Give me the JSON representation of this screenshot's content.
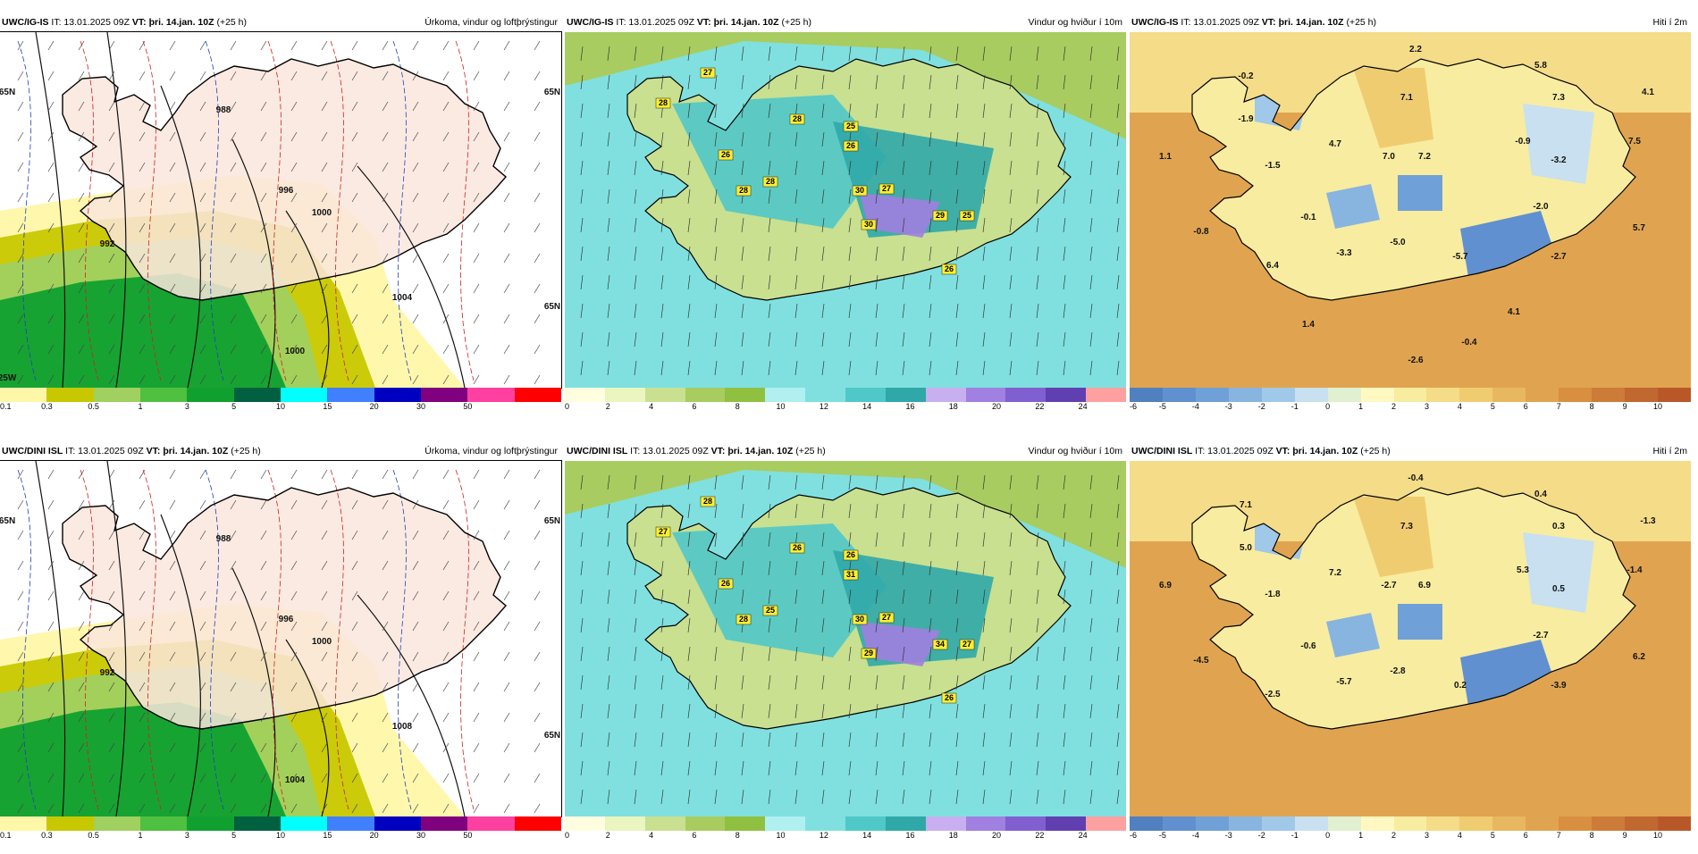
{
  "panels": [
    {
      "model": "UWC/IG-IS",
      "it": "IT: 13.01.2025 09Z",
      "vt_label": "VT:",
      "vt": "þri. 14.jan. 10Z",
      "lead": "(+25 h)",
      "title": "Úrkoma, vindur og loftþrýstingur",
      "type": "precip",
      "scale_labels": [
        "0.1",
        "0.3",
        "0.5",
        "1",
        "3",
        "5",
        "10",
        "15",
        "20",
        "30",
        "50"
      ],
      "scale_colors": [
        "#fff7a8",
        "#c8c800",
        "#a0d060",
        "#50c040",
        "#10a030",
        "#006040",
        "#00ffff",
        "#4080ff",
        "#0000c0",
        "#800080",
        "#ff40a0",
        "#ff0000"
      ],
      "isobars": [
        "988",
        "996",
        "1000",
        "1000",
        "1004",
        "992"
      ],
      "grid_labels": [
        "65N",
        "65N",
        "65N",
        "25W"
      ],
      "point_labels": []
    },
    {
      "model": "UWC/IG-IS",
      "it": "IT: 13.01.2025 09Z",
      "vt_label": "VT:",
      "vt": "þri. 14.jan. 10Z",
      "lead": "(+25 h)",
      "title": "Vindur og hviður í 10m",
      "type": "wind",
      "scale_labels": [
        "0",
        "2",
        "4",
        "6",
        "8",
        "10",
        "12",
        "14",
        "16",
        "18",
        "20",
        "22",
        "24"
      ],
      "scale_colors": [
        "#ffffe0",
        "#eaf5c0",
        "#c8e090",
        "#a8cc60",
        "#90c040",
        "#b0f0f0",
        "#80e0e0",
        "#50c8c8",
        "#30a8a8",
        "#c8b0f0",
        "#a080e0",
        "#8060d0",
        "#6040b0",
        "#ffa0a0"
      ],
      "point_labels": [
        "27",
        "28",
        "26",
        "28",
        "28",
        "28",
        "25",
        "26",
        "30",
        "27",
        "30",
        "29",
        "25",
        "26"
      ],
      "grid_labels": []
    },
    {
      "model": "UWC/IG-IS",
      "it": "IT: 13.01.2025 09Z",
      "vt_label": "VT:",
      "vt": "þri. 14.jan. 10Z",
      "lead": "(+25 h)",
      "title": "Hiti í 2m",
      "type": "temp",
      "scale_labels": [
        "-6",
        "-5",
        "-4",
        "-3",
        "-2",
        "-1",
        "0",
        "1",
        "2",
        "3",
        "4",
        "5",
        "6",
        "7",
        "8",
        "9",
        "10"
      ],
      "scale_colors": [
        "#5080c0",
        "#6090d0",
        "#70a0d8",
        "#88b4e0",
        "#a0c8e8",
        "#c8e0f0",
        "#e0f0d0",
        "#fff8c0",
        "#f8eca0",
        "#f4dc88",
        "#f0cc70",
        "#e8b860",
        "#e0a450",
        "#d89040",
        "#cc7c38",
        "#c06830",
        "#b85828"
      ],
      "point_labels": [
        "2.2",
        "5.8",
        "-0.2",
        "4.1",
        "-1.9",
        "7.1",
        "7.3",
        "1.1",
        "4.7",
        "7.0",
        "7.2",
        "-0.9",
        "7.5",
        "-1.5",
        "-3.2",
        "-0.1",
        "-2.0",
        "-0.8",
        "-3.3",
        "-5.0",
        "5.7",
        "-5.7",
        "-2.7",
        "6.4",
        "1.4",
        "4.1",
        "-0.4",
        "-2.6"
      ],
      "grid_labels": []
    },
    {
      "model": "UWC/DINI ISL",
      "it": "IT: 13.01.2025 09Z",
      "vt_label": "VT:",
      "vt": "þri. 14.jan. 10Z",
      "lead": "(+25 h)",
      "title": "Úrkoma, vindur og loftþrýstingur",
      "type": "precip",
      "scale_labels": [
        "0.1",
        "0.3",
        "0.5",
        "1",
        "3",
        "5",
        "10",
        "15",
        "20",
        "30",
        "50"
      ],
      "scale_colors": [
        "#fff7a8",
        "#c8c800",
        "#a0d060",
        "#50c040",
        "#10a030",
        "#006040",
        "#00ffff",
        "#4080ff",
        "#0000c0",
        "#800080",
        "#ff40a0",
        "#ff0000"
      ],
      "isobars": [
        "988",
        "996",
        "1000",
        "1004",
        "1008",
        "992"
      ],
      "grid_labels": [
        "65N",
        "65N",
        "65N"
      ],
      "point_labels": []
    },
    {
      "model": "UWC/DINI ISL",
      "it": "IT: 13.01.2025 09Z",
      "vt_label": "VT:",
      "vt": "þri. 14.jan. 10Z",
      "lead": "(+25 h)",
      "title": "Vindur og hviður í 10m",
      "type": "wind",
      "scale_labels": [
        "0",
        "2",
        "4",
        "6",
        "8",
        "10",
        "12",
        "14",
        "16",
        "18",
        "20",
        "22",
        "24"
      ],
      "scale_colors": [
        "#ffffe0",
        "#eaf5c0",
        "#c8e090",
        "#a8cc60",
        "#90c040",
        "#b0f0f0",
        "#80e0e0",
        "#50c8c8",
        "#30a8a8",
        "#c8b0f0",
        "#a080e0",
        "#8060d0",
        "#6040b0",
        "#ffa0a0"
      ],
      "point_labels": [
        "28",
        "27",
        "26",
        "28",
        "25",
        "26",
        "26",
        "31",
        "30",
        "27",
        "29",
        "34",
        "27",
        "26"
      ],
      "grid_labels": []
    },
    {
      "model": "UWC/DINI ISL",
      "it": "IT: 13.01.2025 09Z",
      "vt_label": "VT:",
      "vt": "þri. 14.jan. 10Z",
      "lead": "(+25 h)",
      "title": "Hiti í 2m",
      "type": "temp",
      "scale_labels": [
        "-6",
        "-5",
        "-4",
        "-3",
        "-2",
        "-1",
        "0",
        "1",
        "2",
        "3",
        "4",
        "5",
        "6",
        "7",
        "8",
        "9",
        "10"
      ],
      "scale_colors": [
        "#5080c0",
        "#6090d0",
        "#70a0d8",
        "#88b4e0",
        "#a0c8e8",
        "#c8e0f0",
        "#e0f0d0",
        "#fff8c0",
        "#f8eca0",
        "#f4dc88",
        "#f0cc70",
        "#e8b860",
        "#e0a450",
        "#d89040",
        "#cc7c38",
        "#c06830",
        "#b85828"
      ],
      "point_labels": [
        "-0.4",
        "0.4",
        "7.1",
        "-1.3",
        "5.0",
        "7.3",
        "0.3",
        "6.9",
        "7.2",
        "-2.7",
        "6.9",
        "5.3",
        "-1.4",
        "-1.8",
        "0.5",
        "-0.6",
        "-2.7",
        "-4.5",
        "-5.7",
        "-2.8",
        "6.2",
        "0.2",
        "-3.9",
        "-2.5"
      ],
      "grid_labels": []
    }
  ]
}
